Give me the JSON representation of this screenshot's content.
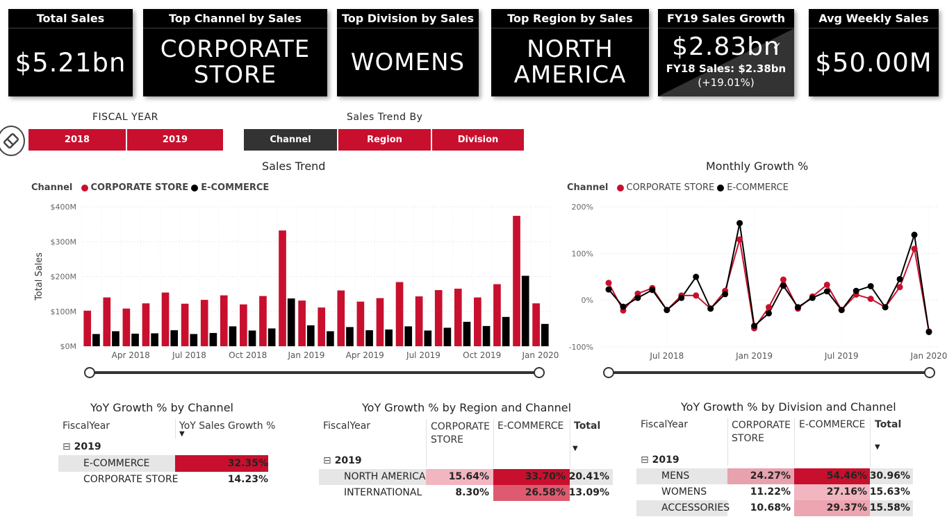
{
  "kpis": {
    "total_sales": {
      "title": "Total Sales",
      "value": "$5.21bn"
    },
    "top_channel": {
      "title": "Top Channel by Sales",
      "value_line1": "CORPORATE",
      "value_line2": "STORE"
    },
    "top_division": {
      "title": "Top Division by Sales",
      "value": "WOMENS"
    },
    "top_region": {
      "title": "Top Region by Sales",
      "value_line1": "NORTH",
      "value_line2": "AMERICA"
    },
    "fy19_growth": {
      "title": "FY19 Sales Growth",
      "value": "$2.83bn",
      "sub": "FY18 Sales: $2.38bn",
      "pct": "(+19.01%)"
    },
    "avg_weekly": {
      "title": "Avg Weekly Sales",
      "value": "$50.00M"
    }
  },
  "slicers": {
    "fiscal_year": {
      "label": "FISCAL YEAR",
      "options": [
        "2018",
        "2019"
      ]
    },
    "sales_trend_by": {
      "label": "Sales Trend By",
      "options": [
        "Channel",
        "Region",
        "Division"
      ],
      "selected": "Channel"
    }
  },
  "colors": {
    "corporate": "#c8102e",
    "ecommerce": "#000000",
    "accent": "#c8102e"
  },
  "sales_trend": {
    "title": "Sales Trend",
    "legend_title": "Channel",
    "legend": [
      "CORPORATE STORE",
      "E-COMMERCE"
    ],
    "ylabel": "Total Sales",
    "yticks": [
      "$0M",
      "$100M",
      "$200M",
      "$300M",
      "$400M"
    ],
    "xticks": [
      "Apr 2018",
      "Jul 2018",
      "Oct 2018",
      "Jan 2019",
      "Apr 2019",
      "Jul 2019",
      "Oct 2019",
      "Jan 2020"
    ]
  },
  "monthly_growth": {
    "title": "Monthly Growth %",
    "legend_title": "Channel",
    "legend": [
      "CORPORATE STORE",
      "E-COMMERCE"
    ],
    "yticks": [
      "-100%",
      "0%",
      "100%",
      "200%"
    ],
    "xticks": [
      "Jul 2018",
      "Jan 2019",
      "Jul 2019",
      "Jan 2020"
    ]
  },
  "chart_data": [
    {
      "type": "bar",
      "title": "Sales Trend",
      "xlabel": "",
      "ylabel": "Total Sales",
      "ylim": [
        0,
        400
      ],
      "unit": "$M",
      "categories": [
        "Feb 2018",
        "Mar 2018",
        "Apr 2018",
        "May 2018",
        "Jun 2018",
        "Jul 2018",
        "Aug 2018",
        "Sep 2018",
        "Oct 2018",
        "Nov 2018",
        "Dec 2018",
        "Jan 2019",
        "Feb 2019",
        "Mar 2019",
        "Apr 2019",
        "May 2019",
        "Jun 2019",
        "Jul 2019",
        "Aug 2019",
        "Sep 2019",
        "Oct 2019",
        "Nov 2019",
        "Dec 2019",
        "Jan 2020"
      ],
      "series": [
        {
          "name": "CORPORATE STORE",
          "values": [
            102,
            140,
            108,
            123,
            154,
            122,
            133,
            146,
            120,
            144,
            332,
            131,
            111,
            160,
            128,
            138,
            184,
            143,
            161,
            165,
            140,
            178,
            374,
            123
          ]
        },
        {
          "name": "E-COMMERCE",
          "values": [
            35,
            43,
            36,
            37,
            46,
            35,
            38,
            57,
            45,
            51,
            137,
            60,
            43,
            55,
            46,
            48,
            57,
            45,
            53,
            70,
            58,
            84,
            202,
            64
          ]
        }
      ]
    },
    {
      "type": "line",
      "title": "Monthly Growth %",
      "ylim": [
        -100,
        200
      ],
      "unit": "%",
      "x": [
        "Mar 2018",
        "Apr 2018",
        "May 2018",
        "Jun 2018",
        "Jul 2018",
        "Aug 2018",
        "Sep 2018",
        "Oct 2018",
        "Nov 2018",
        "Dec 2018",
        "Jan 2019",
        "Feb 2019",
        "Mar 2019",
        "Apr 2019",
        "May 2019",
        "Jun 2019",
        "Jul 2019",
        "Aug 2019",
        "Sep 2019",
        "Oct 2019",
        "Nov 2019",
        "Dec 2019",
        "Jan 2020"
      ],
      "series": [
        {
          "name": "CORPORATE STORE",
          "values": [
            37,
            -22,
            14,
            26,
            -21,
            10,
            10,
            -18,
            20,
            130,
            -60,
            -15,
            44,
            -18,
            8,
            33,
            -21,
            12,
            3,
            -15,
            28,
            110,
            -67
          ]
        },
        {
          "name": "E-COMMERCE",
          "values": [
            23,
            -14,
            5,
            22,
            -21,
            5,
            50,
            -18,
            13,
            165,
            -55,
            -28,
            31,
            -15,
            5,
            19,
            -21,
            20,
            30,
            -15,
            45,
            140,
            -68
          ]
        }
      ]
    }
  ],
  "yoy_channel": {
    "title": "YoY Growth % by Channel",
    "headers": [
      "FiscalYear",
      "YoY Sales Growth %"
    ],
    "year": "2019",
    "rows": [
      {
        "label": "E-COMMERCE",
        "value": "32.35%"
      },
      {
        "label": "CORPORATE STORE",
        "value": "14.23%"
      }
    ]
  },
  "yoy_region": {
    "title": "YoY Growth % by Region and Channel",
    "headers": [
      "FiscalYear",
      "CORPORATE STORE",
      "E-COMMERCE",
      "Total"
    ],
    "year": "2019",
    "rows": [
      {
        "label": "NORTH AMERICA",
        "corp": "15.64%",
        "ecom": "33.70%",
        "total": "20.41%"
      },
      {
        "label": "INTERNATIONAL",
        "corp": "8.30%",
        "ecom": "26.58%",
        "total": "13.09%"
      }
    ]
  },
  "yoy_division": {
    "title": "YoY Growth % by Division and Channel",
    "headers": [
      "FiscalYear",
      "CORPORATE STORE",
      "E-COMMERCE",
      "Total"
    ],
    "year": "2019",
    "rows": [
      {
        "label": "MENS",
        "corp": "24.27%",
        "ecom": "54.46%",
        "total": "30.96%"
      },
      {
        "label": "WOMENS",
        "corp": "11.22%",
        "ecom": "27.16%",
        "total": "15.63%"
      },
      {
        "label": "ACCESSORIES",
        "corp": "10.68%",
        "ecom": "29.37%",
        "total": "15.58%"
      }
    ]
  }
}
